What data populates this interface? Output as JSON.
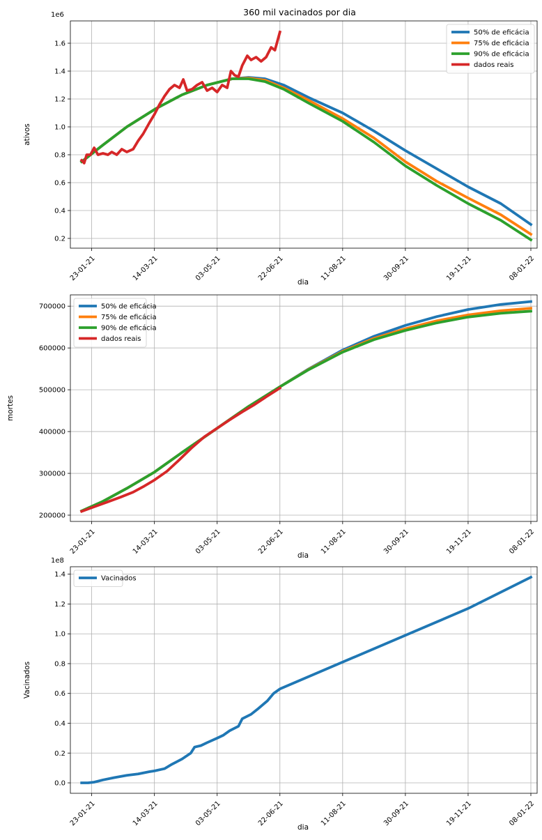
{
  "figure_title": "360 mil vacinados por dia",
  "colors": {
    "blue": "#1f77b4",
    "orange": "#ff7f0e",
    "green": "#2ca02c",
    "red": "#d62728",
    "grid": "#b0b0b0"
  },
  "chart_data": [
    {
      "type": "line",
      "title": "360 mil vacinados por dia",
      "xlabel": "dia",
      "ylabel": "ativos",
      "offset_label": "1e6",
      "x_ticks": [
        "23-01-21",
        "14-03-21",
        "03-05-21",
        "22-06-21",
        "11-08-21",
        "30-09-21",
        "19-11-21",
        "08-01-22"
      ],
      "xlim": [
        "2021-01-06",
        "2022-01-13"
      ],
      "ylim": [
        0.13,
        1.76
      ],
      "y_ticks": [
        0.2,
        0.4,
        0.6,
        0.8,
        1.0,
        1.2,
        1.4,
        1.6
      ],
      "y_tick_labels": [
        "0.2",
        "0.4",
        "0.6",
        "0.8",
        "1.0",
        "1.2",
        "1.4",
        "1.6"
      ],
      "grid": true,
      "legend_position": "top-right",
      "series": [
        {
          "name": "50% de eficácia",
          "color": "#1f77b4",
          "data": [
            [
              "2021-01-15",
              0.75
            ],
            [
              "2021-02-01",
              0.87
            ],
            [
              "2021-02-20",
              1.0
            ],
            [
              "2021-03-15",
              1.13
            ],
            [
              "2021-04-05",
              1.23
            ],
            [
              "2021-04-25",
              1.3
            ],
            [
              "2021-05-15",
              1.345
            ],
            [
              "2021-05-28",
              1.355
            ],
            [
              "2021-06-10",
              1.345
            ],
            [
              "2021-06-25",
              1.3
            ],
            [
              "2021-07-15",
              1.21
            ],
            [
              "2021-08-11",
              1.1
            ],
            [
              "2021-09-05",
              0.97
            ],
            [
              "2021-09-30",
              0.83
            ],
            [
              "2021-10-25",
              0.7
            ],
            [
              "2021-11-19",
              0.57
            ],
            [
              "2021-12-15",
              0.45
            ],
            [
              "2022-01-08",
              0.3
            ]
          ]
        },
        {
          "name": "75% de eficácia",
          "color": "#ff7f0e",
          "data": [
            [
              "2021-01-15",
              0.75
            ],
            [
              "2021-02-01",
              0.87
            ],
            [
              "2021-02-20",
              1.0
            ],
            [
              "2021-03-15",
              1.13
            ],
            [
              "2021-04-05",
              1.23
            ],
            [
              "2021-04-25",
              1.3
            ],
            [
              "2021-05-15",
              1.345
            ],
            [
              "2021-05-28",
              1.35
            ],
            [
              "2021-06-10",
              1.335
            ],
            [
              "2021-06-25",
              1.28
            ],
            [
              "2021-07-15",
              1.19
            ],
            [
              "2021-08-11",
              1.06
            ],
            [
              "2021-09-05",
              0.92
            ],
            [
              "2021-09-30",
              0.75
            ],
            [
              "2021-10-25",
              0.61
            ],
            [
              "2021-11-19",
              0.49
            ],
            [
              "2021-12-15",
              0.37
            ],
            [
              "2022-01-08",
              0.23
            ]
          ]
        },
        {
          "name": "90% de eficácia",
          "color": "#2ca02c",
          "data": [
            [
              "2021-01-15",
              0.75
            ],
            [
              "2021-02-01",
              0.87
            ],
            [
              "2021-02-20",
              1.0
            ],
            [
              "2021-03-15",
              1.13
            ],
            [
              "2021-04-05",
              1.23
            ],
            [
              "2021-04-25",
              1.3
            ],
            [
              "2021-05-15",
              1.345
            ],
            [
              "2021-05-28",
              1.345
            ],
            [
              "2021-06-10",
              1.325
            ],
            [
              "2021-06-25",
              1.27
            ],
            [
              "2021-07-15",
              1.17
            ],
            [
              "2021-08-11",
              1.04
            ],
            [
              "2021-09-05",
              0.89
            ],
            [
              "2021-09-30",
              0.72
            ],
            [
              "2021-10-25",
              0.58
            ],
            [
              "2021-11-19",
              0.45
            ],
            [
              "2021-12-15",
              0.33
            ],
            [
              "2022-01-08",
              0.19
            ]
          ]
        },
        {
          "name": "dados reais",
          "color": "#d62728",
          "data": [
            [
              "2021-01-15",
              0.76
            ],
            [
              "2021-01-17",
              0.74
            ],
            [
              "2021-01-19",
              0.8
            ],
            [
              "2021-01-22",
              0.8
            ],
            [
              "2021-01-25",
              0.85
            ],
            [
              "2021-01-28",
              0.8
            ],
            [
              "2021-02-01",
              0.81
            ],
            [
              "2021-02-05",
              0.8
            ],
            [
              "2021-02-08",
              0.82
            ],
            [
              "2021-02-12",
              0.8
            ],
            [
              "2021-02-16",
              0.84
            ],
            [
              "2021-02-20",
              0.82
            ],
            [
              "2021-02-25",
              0.84
            ],
            [
              "2021-03-01",
              0.9
            ],
            [
              "2021-03-05",
              0.95
            ],
            [
              "2021-03-10",
              1.03
            ],
            [
              "2021-03-14",
              1.09
            ],
            [
              "2021-03-18",
              1.16
            ],
            [
              "2021-03-22",
              1.22
            ],
            [
              "2021-03-26",
              1.27
            ],
            [
              "2021-03-30",
              1.3
            ],
            [
              "2021-04-03",
              1.28
            ],
            [
              "2021-04-06",
              1.34
            ],
            [
              "2021-04-09",
              1.26
            ],
            [
              "2021-04-13",
              1.27
            ],
            [
              "2021-04-17",
              1.3
            ],
            [
              "2021-04-21",
              1.32
            ],
            [
              "2021-04-25",
              1.26
            ],
            [
              "2021-04-29",
              1.28
            ],
            [
              "2021-05-03",
              1.25
            ],
            [
              "2021-05-07",
              1.3
            ],
            [
              "2021-05-11",
              1.28
            ],
            [
              "2021-05-14",
              1.4
            ],
            [
              "2021-05-17",
              1.37
            ],
            [
              "2021-05-20",
              1.36
            ],
            [
              "2021-05-23",
              1.44
            ],
            [
              "2021-05-27",
              1.51
            ],
            [
              "2021-05-30",
              1.48
            ],
            [
              "2021-06-03",
              1.5
            ],
            [
              "2021-06-07",
              1.47
            ],
            [
              "2021-06-11",
              1.5
            ],
            [
              "2021-06-15",
              1.57
            ],
            [
              "2021-06-18",
              1.55
            ],
            [
              "2021-06-22",
              1.68
            ]
          ]
        }
      ]
    },
    {
      "type": "line",
      "xlabel": "dia",
      "ylabel": "mortes",
      "x_ticks": [
        "23-01-21",
        "14-03-21",
        "03-05-21",
        "22-06-21",
        "11-08-21",
        "30-09-21",
        "19-11-21",
        "08-01-22"
      ],
      "xlim": [
        "2021-01-06",
        "2022-01-13"
      ],
      "ylim": [
        185000,
        727000
      ],
      "y_ticks": [
        200000,
        300000,
        400000,
        500000,
        600000,
        700000
      ],
      "y_tick_labels": [
        "200000",
        "300000",
        "400000",
        "500000",
        "600000",
        "700000"
      ],
      "grid": true,
      "legend_position": "top-left",
      "series": [
        {
          "name": "50% de eficácia",
          "color": "#1f77b4",
          "data": [
            [
              "2021-01-15",
              210000
            ],
            [
              "2021-02-01",
              233000
            ],
            [
              "2021-02-20",
              264000
            ],
            [
              "2021-03-14",
              303000
            ],
            [
              "2021-04-05",
              350000
            ],
            [
              "2021-05-03",
              408000
            ],
            [
              "2021-05-28",
              460000
            ],
            [
              "2021-06-22",
              507000
            ],
            [
              "2021-07-15",
              550000
            ],
            [
              "2021-08-11",
              595000
            ],
            [
              "2021-09-05",
              628000
            ],
            [
              "2021-09-30",
              654000
            ],
            [
              "2021-10-25",
              675000
            ],
            [
              "2021-11-19",
              692000
            ],
            [
              "2021-12-15",
              704000
            ],
            [
              "2022-01-08",
              711000
            ]
          ]
        },
        {
          "name": "75% de eficácia",
          "color": "#ff7f0e",
          "data": [
            [
              "2021-01-15",
              210000
            ],
            [
              "2021-02-01",
              233000
            ],
            [
              "2021-02-20",
              264000
            ],
            [
              "2021-03-14",
              303000
            ],
            [
              "2021-04-05",
              350000
            ],
            [
              "2021-05-03",
              408000
            ],
            [
              "2021-05-28",
              460000
            ],
            [
              "2021-06-22",
              507000
            ],
            [
              "2021-07-15",
              549000
            ],
            [
              "2021-08-11",
              592000
            ],
            [
              "2021-09-05",
              623000
            ],
            [
              "2021-09-30",
              646000
            ],
            [
              "2021-10-25",
              665000
            ],
            [
              "2021-11-19",
              679000
            ],
            [
              "2021-12-15",
              689000
            ],
            [
              "2022-01-08",
              695000
            ]
          ]
        },
        {
          "name": "90% de eficácia",
          "color": "#2ca02c",
          "data": [
            [
              "2021-01-15",
              210000
            ],
            [
              "2021-02-01",
              233000
            ],
            [
              "2021-02-20",
              264000
            ],
            [
              "2021-03-14",
              303000
            ],
            [
              "2021-04-05",
              350000
            ],
            [
              "2021-05-03",
              408000
            ],
            [
              "2021-05-28",
              460000
            ],
            [
              "2021-06-22",
              507000
            ],
            [
              "2021-07-15",
              548000
            ],
            [
              "2021-08-11",
              590000
            ],
            [
              "2021-09-05",
              620000
            ],
            [
              "2021-09-30",
              642000
            ],
            [
              "2021-10-25",
              660000
            ],
            [
              "2021-11-19",
              674000
            ],
            [
              "2021-12-15",
              683000
            ],
            [
              "2022-01-08",
              688000
            ]
          ]
        },
        {
          "name": "dados reais",
          "color": "#d62728",
          "data": [
            [
              "2021-01-15",
              209000
            ],
            [
              "2021-01-25",
              220000
            ],
            [
              "2021-02-05",
              232000
            ],
            [
              "2021-02-15",
              243000
            ],
            [
              "2021-02-25",
              255000
            ],
            [
              "2021-03-05",
              268000
            ],
            [
              "2021-03-14",
              284000
            ],
            [
              "2021-03-24",
              305000
            ],
            [
              "2021-04-03",
              333000
            ],
            [
              "2021-04-13",
              362000
            ],
            [
              "2021-04-23",
              388000
            ],
            [
              "2021-05-03",
              408000
            ],
            [
              "2021-05-13",
              428000
            ],
            [
              "2021-05-23",
              447000
            ],
            [
              "2021-06-02",
              465000
            ],
            [
              "2021-06-12",
              485000
            ],
            [
              "2021-06-22",
              504000
            ]
          ]
        }
      ]
    },
    {
      "type": "line",
      "xlabel": "dia",
      "ylabel": "Vacinados",
      "offset_label": "1e8",
      "x_ticks": [
        "23-01-21",
        "14-03-21",
        "03-05-21",
        "22-06-21",
        "11-08-21",
        "30-09-21",
        "19-11-21",
        "08-01-22"
      ],
      "xlim": [
        "2021-01-06",
        "2022-01-13"
      ],
      "ylim": [
        -0.07,
        1.45
      ],
      "y_ticks": [
        0.0,
        0.2,
        0.4,
        0.6,
        0.8,
        1.0,
        1.2,
        1.4
      ],
      "y_tick_labels": [
        "0.0",
        "0.2",
        "0.4",
        "0.6",
        "0.8",
        "1.0",
        "1.2",
        "1.4"
      ],
      "grid": true,
      "legend_position": "top-left",
      "series": [
        {
          "name": "Vacinados",
          "color": "#1f77b4",
          "data": [
            [
              "2021-01-15",
              0.0
            ],
            [
              "2021-01-20",
              0.0
            ],
            [
              "2021-01-25",
              0.005
            ],
            [
              "2021-02-01",
              0.02
            ],
            [
              "2021-02-10",
              0.035
            ],
            [
              "2021-02-20",
              0.05
            ],
            [
              "2021-03-01",
              0.06
            ],
            [
              "2021-03-10",
              0.075
            ],
            [
              "2021-03-14",
              0.08
            ],
            [
              "2021-03-22",
              0.095
            ],
            [
              "2021-03-28",
              0.125
            ],
            [
              "2021-04-05",
              0.16
            ],
            [
              "2021-04-12",
              0.2
            ],
            [
              "2021-04-15",
              0.24
            ],
            [
              "2021-04-20",
              0.25
            ],
            [
              "2021-04-25",
              0.27
            ],
            [
              "2021-05-03",
              0.3
            ],
            [
              "2021-05-08",
              0.32
            ],
            [
              "2021-05-13",
              0.35
            ],
            [
              "2021-05-20",
              0.38
            ],
            [
              "2021-05-23",
              0.43
            ],
            [
              "2021-05-30",
              0.46
            ],
            [
              "2021-06-05",
              0.5
            ],
            [
              "2021-06-12",
              0.55
            ],
            [
              "2021-06-17",
              0.6
            ],
            [
              "2021-06-22",
              0.63
            ],
            [
              "2021-08-11",
              0.81
            ],
            [
              "2021-09-30",
              0.99
            ],
            [
              "2021-11-19",
              1.17
            ],
            [
              "2022-01-08",
              1.38
            ]
          ]
        }
      ]
    }
  ]
}
